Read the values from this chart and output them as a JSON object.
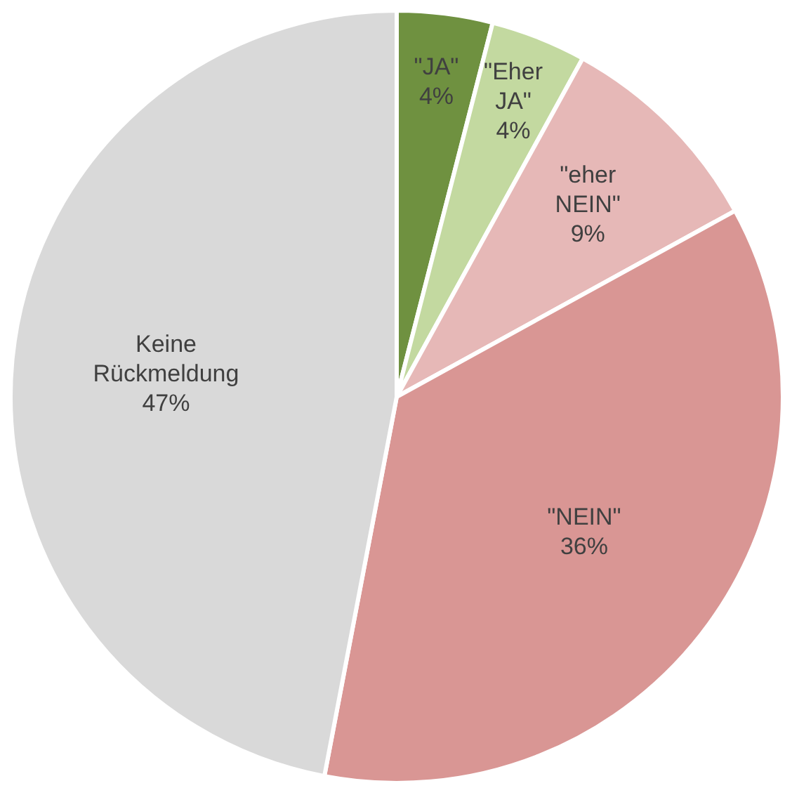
{
  "chart_data": {
    "type": "pie",
    "categories": [
      "\"JA\"",
      "\"Eher JA\"",
      "\"eher NEIN\"",
      "\"NEIN\"",
      "Keine Rückmeldung"
    ],
    "values": [
      4,
      4,
      9,
      36,
      47
    ],
    "colors": [
      "#6f9140",
      "#c3d9a0",
      "#e6b8b7",
      "#d99694",
      "#d9d9d9"
    ],
    "value_labels": [
      "4%",
      "4%",
      "9%",
      "36%",
      "47%"
    ],
    "legend": false
  }
}
